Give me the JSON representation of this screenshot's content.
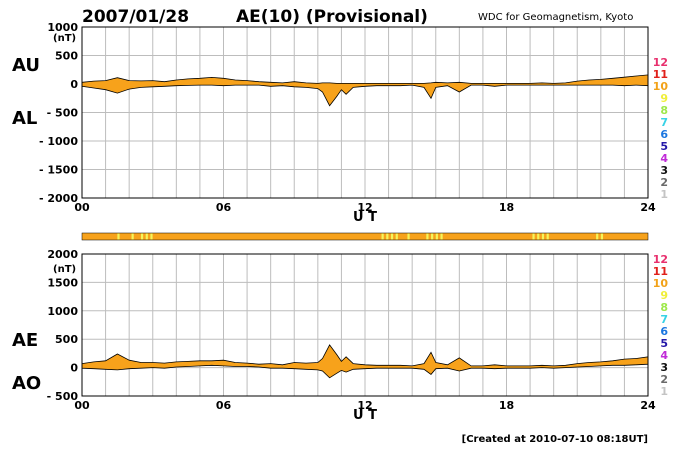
{
  "header": {
    "date": "2007/01/28",
    "title": "AE(10) (Provisional)",
    "source": "WDC for Geomagnetism, Kyoto",
    "footer": "[Created at 2010-07-10 08:18UT]"
  },
  "colors": {
    "fill": "#f7a21b",
    "stroke": "#000000",
    "grid": "#bdbdbd",
    "qbar": "#f7a21b",
    "qbar_mark": "#f5f55a"
  },
  "chart_data": [
    {
      "type": "area",
      "name": "AU/AL",
      "series_labels": [
        "AU",
        "AL"
      ],
      "ylabel": "(nT)",
      "xlabel": "U T",
      "xlim": [
        0,
        24
      ],
      "ylim": [
        -2000,
        1000
      ],
      "xticks": [
        "00",
        "06",
        "12",
        "18",
        "24"
      ],
      "xtick_values": [
        0,
        6,
        12,
        18,
        24
      ],
      "yticks": [
        "1000",
        "500",
        "0",
        "- 500",
        "- 1000",
        "- 1500",
        "- 2000"
      ],
      "ytick_values": [
        1000,
        500,
        0,
        -500,
        -1000,
        -1500,
        -2000
      ],
      "grid": true,
      "x": [
        0,
        0.5,
        1,
        1.5,
        2,
        2.5,
        3,
        3.5,
        4,
        4.5,
        5,
        5.5,
        6,
        6.5,
        7,
        7.5,
        8,
        8.5,
        9,
        9.5,
        10,
        10.2,
        10.5,
        10.8,
        11,
        11.2,
        11.5,
        12,
        12.5,
        13,
        13.5,
        14,
        14.5,
        14.8,
        15,
        15.5,
        16,
        16.5,
        17,
        17.5,
        18,
        18.5,
        19,
        19.5,
        20,
        20.5,
        21,
        21.5,
        22,
        22.5,
        23,
        23.5,
        24
      ],
      "upper": [
        30,
        50,
        60,
        110,
        60,
        55,
        60,
        40,
        70,
        90,
        100,
        115,
        100,
        70,
        60,
        40,
        30,
        20,
        40,
        20,
        10,
        20,
        20,
        10,
        10,
        10,
        10,
        10,
        10,
        10,
        10,
        10,
        10,
        20,
        30,
        20,
        30,
        10,
        10,
        10,
        10,
        10,
        10,
        20,
        10,
        20,
        50,
        70,
        80,
        100,
        120,
        140,
        160
      ],
      "lower": [
        -40,
        -70,
        -100,
        -160,
        -90,
        -60,
        -50,
        -40,
        -30,
        -25,
        -20,
        -20,
        -30,
        -20,
        -20,
        -20,
        -40,
        -30,
        -50,
        -60,
        -80,
        -140,
        -380,
        -220,
        -100,
        -180,
        -60,
        -40,
        -30,
        -30,
        -30,
        -20,
        -60,
        -250,
        -60,
        -30,
        -140,
        -20,
        -20,
        -40,
        -20,
        -20,
        -20,
        -20,
        -20,
        -20,
        -20,
        -20,
        -20,
        -20,
        -30,
        -20,
        -30
      ]
    },
    {
      "type": "area",
      "name": "AE/AO",
      "series_labels": [
        "AE",
        "AO"
      ],
      "ylabel": "(nT)",
      "xlabel": "U T",
      "xlim": [
        0,
        24
      ],
      "ylim": [
        -500,
        2000
      ],
      "xticks": [
        "00",
        "06",
        "12",
        "18",
        "24"
      ],
      "xtick_values": [
        0,
        6,
        12,
        18,
        24
      ],
      "yticks": [
        "2000",
        "1500",
        "1000",
        "500",
        "0",
        "- 500"
      ],
      "ytick_values": [
        2000,
        1500,
        1000,
        500,
        0,
        -500
      ],
      "grid": true,
      "x": [
        0,
        0.5,
        1,
        1.5,
        2,
        2.5,
        3,
        3.5,
        4,
        4.5,
        5,
        5.5,
        6,
        6.5,
        7,
        7.5,
        8,
        8.5,
        9,
        9.5,
        10,
        10.2,
        10.5,
        10.8,
        11,
        11.2,
        11.5,
        12,
        12.5,
        13,
        13.5,
        14,
        14.5,
        14.8,
        15,
        15.5,
        16,
        16.5,
        17,
        17.5,
        18,
        18.5,
        19,
        19.5,
        20,
        20.5,
        21,
        21.5,
        22,
        22.5,
        23,
        23.5,
        24
      ],
      "upper": [
        70,
        100,
        120,
        240,
        130,
        90,
        90,
        80,
        100,
        110,
        120,
        120,
        130,
        90,
        80,
        60,
        70,
        50,
        90,
        80,
        90,
        160,
        400,
        230,
        110,
        190,
        70,
        50,
        40,
        40,
        40,
        30,
        70,
        270,
        90,
        50,
        170,
        30,
        30,
        50,
        30,
        30,
        30,
        40,
        30,
        40,
        70,
        90,
        100,
        120,
        150,
        160,
        190
      ],
      "lower": [
        -10,
        -20,
        -30,
        -40,
        -20,
        -10,
        0,
        -10,
        10,
        20,
        30,
        40,
        30,
        20,
        20,
        10,
        -10,
        -10,
        -20,
        -30,
        -40,
        -60,
        -180,
        -100,
        -50,
        -80,
        -30,
        -20,
        -10,
        -10,
        -10,
        -10,
        -30,
        -120,
        -20,
        -10,
        -60,
        -10,
        -10,
        -20,
        -10,
        -10,
        -10,
        0,
        -10,
        0,
        10,
        20,
        30,
        40,
        40,
        50,
        60
      ]
    }
  ],
  "quality_bar": {
    "marks_ut": [
      1.5,
      2.1,
      2.5,
      2.7,
      2.9,
      12.7,
      12.9,
      13.1,
      13.3,
      13.8,
      14.6,
      14.8,
      15.0,
      15.2,
      19.1,
      19.3,
      19.5,
      19.7,
      21.8,
      22.0
    ]
  },
  "legend": {
    "items": [
      {
        "label": "12",
        "color": "#e8306e"
      },
      {
        "label": "11",
        "color": "#e0201a"
      },
      {
        "label": "10",
        "color": "#f2a218"
      },
      {
        "label": "9",
        "color": "#f0ef3a"
      },
      {
        "label": "8",
        "color": "#9ee84a"
      },
      {
        "label": "7",
        "color": "#37d2e6"
      },
      {
        "label": "6",
        "color": "#1a76e0"
      },
      {
        "label": "5",
        "color": "#2418a8"
      },
      {
        "label": "4",
        "color": "#c02ad8"
      },
      {
        "label": "3",
        "color": "#111111"
      },
      {
        "label": "2",
        "color": "#6a6a6a"
      },
      {
        "label": "1",
        "color": "#c4c4c4"
      }
    ]
  }
}
